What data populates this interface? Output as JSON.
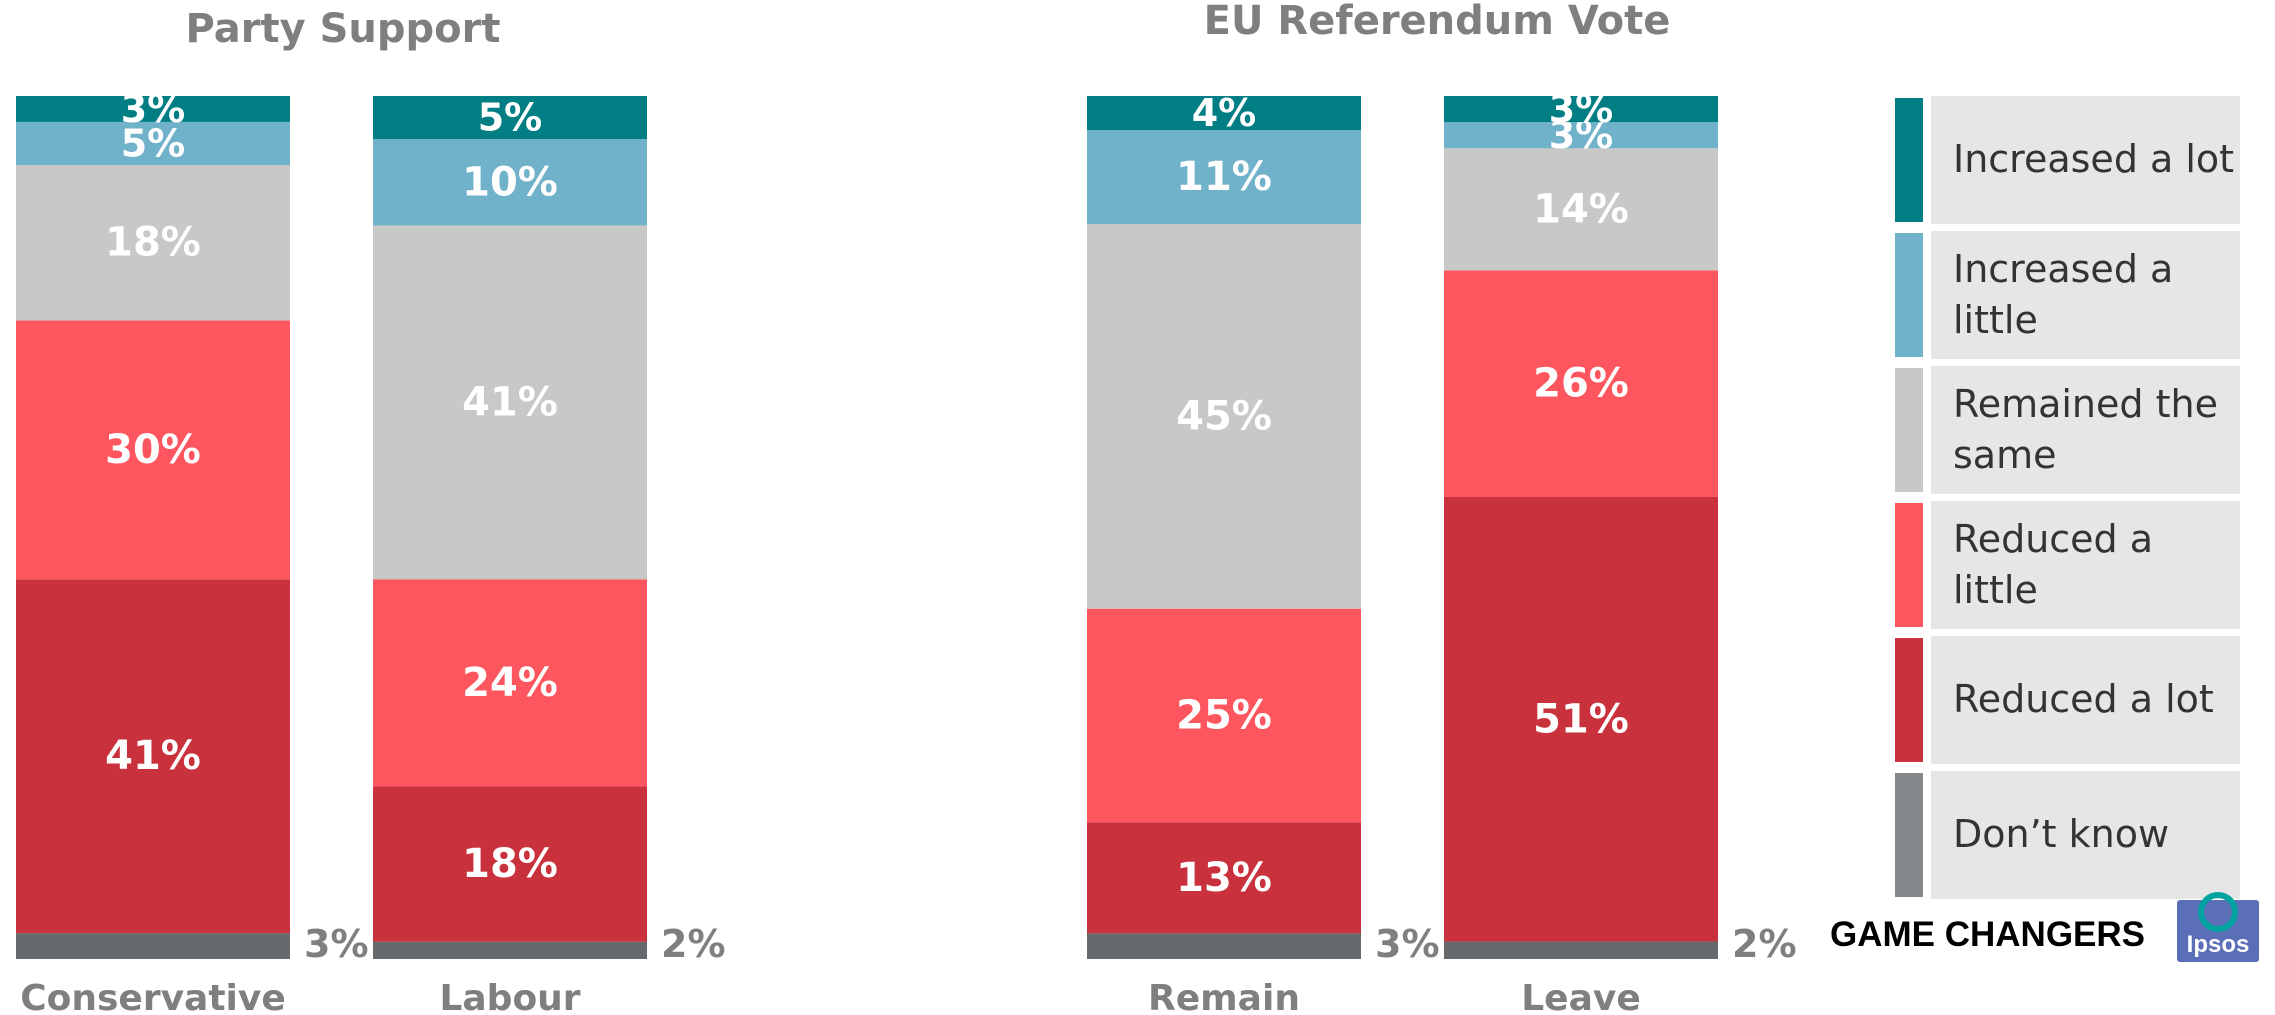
{
  "chart_data": [
    {
      "type": "bar",
      "stacked": true,
      "title": "Party Support",
      "categories": [
        "Conservative",
        "Labour"
      ],
      "series": [
        {
          "name": "Don’t know",
          "color": "#666a6d",
          "values": [
            3,
            2
          ]
        },
        {
          "name": "Reduced a lot",
          "color": "#c9323c",
          "values": [
            41,
            18
          ]
        },
        {
          "name": "Reduced a little",
          "color": "#fe565e",
          "values": [
            30,
            24
          ]
        },
        {
          "name": "Remained the same",
          "color": "#c8c8c6",
          "values": [
            18,
            41
          ]
        },
        {
          "name": "Increased a little",
          "color": "#71b2cb",
          "values": [
            5,
            10
          ]
        },
        {
          "name": "Increased a lot",
          "color": "#007e84",
          "values": [
            3,
            5
          ]
        }
      ],
      "data_labels": [
        "3%",
        "2%",
        "41%",
        "18%",
        "30%",
        "24%",
        "18%",
        "41%",
        "5%",
        "10%",
        "3%",
        "5%"
      ],
      "ylim": [
        0,
        100
      ]
    },
    {
      "type": "bar",
      "stacked": true,
      "title": "EU Referendum Vote",
      "categories": [
        "Remain",
        "Leave"
      ],
      "series": [
        {
          "name": "Don’t know",
          "color": "#666a6d",
          "values": [
            3,
            2
          ]
        },
        {
          "name": "Reduced a lot",
          "color": "#c9323c",
          "values": [
            13,
            51
          ]
        },
        {
          "name": "Reduced a little",
          "color": "#fe565e",
          "values": [
            25,
            26
          ]
        },
        {
          "name": "Remained the same",
          "color": "#c8c8c6",
          "values": [
            45,
            14
          ]
        },
        {
          "name": "Increased a little",
          "color": "#71b2cb",
          "values": [
            11,
            3
          ]
        },
        {
          "name": "Increased a lot",
          "color": "#007e84",
          "values": [
            4,
            3
          ]
        }
      ],
      "data_labels": [
        "3%",
        "2%",
        "13%",
        "51%",
        "25%",
        "26%",
        "45%",
        "14%",
        "11%",
        "3%",
        "4%",
        "3%"
      ],
      "ylim": [
        0,
        100
      ]
    }
  ],
  "legend": {
    "placement": "right",
    "items": [
      {
        "label": "Increased a lot",
        "color": "#007e84"
      },
      {
        "label": "Increased a little",
        "color": "#71b2cb"
      },
      {
        "label": "Remained the same",
        "color": "#c8c8c6"
      },
      {
        "label": "Reduced a little",
        "color": "#fe565e"
      },
      {
        "label": "Reduced a lot",
        "color": "#c9323c"
      },
      {
        "label": "Don’t know",
        "color": "#85898c"
      }
    ]
  },
  "brand": {
    "text": "GAME CHANGERS",
    "logo_text": "Ipsos",
    "logo_color": "#00a3a0",
    "logo_bg": "#5b6fb8"
  }
}
